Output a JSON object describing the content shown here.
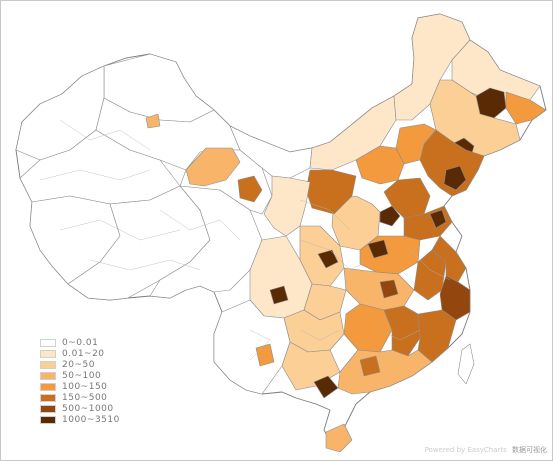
{
  "legend": [
    {
      "label": "0~0.01",
      "color": "#ffffff"
    },
    {
      "label": "0.01~20",
      "color": "#fde7c8"
    },
    {
      "label": "20~50",
      "color": "#fbcf96"
    },
    {
      "label": "50~100",
      "color": "#f8b56a"
    },
    {
      "label": "100~150",
      "color": "#f29a3d"
    },
    {
      "label": "150~500",
      "color": "#c9701f"
    },
    {
      "label": "500~1000",
      "color": "#93460d"
    },
    {
      "label": "1000~3510",
      "color": "#5a2a05"
    }
  ],
  "credit": {
    "text": "Powered by EasyCharts",
    "brand": "数据可视化"
  }
}
